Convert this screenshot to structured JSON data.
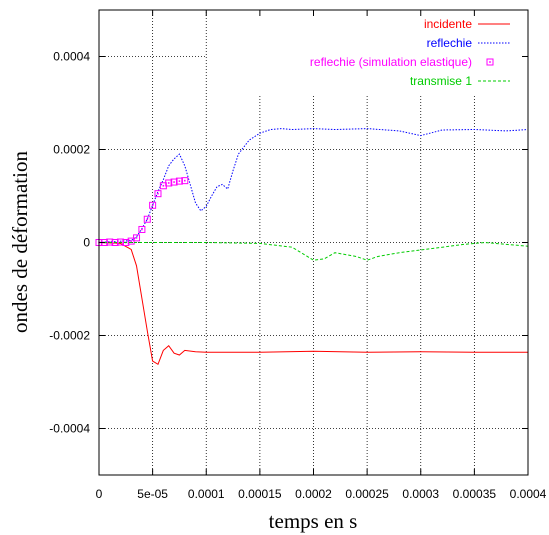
{
  "chart_data": {
    "type": "line",
    "xlabel": "temps en s",
    "ylabel": "ondes de déformation",
    "xlim": [
      0,
      0.0004
    ],
    "ylim": [
      -0.0005,
      0.0005
    ],
    "grid": true,
    "legend_position": "top-right",
    "x_ticks": [
      0,
      5e-05,
      0.0001,
      0.00015,
      0.0002,
      0.00025,
      0.0003,
      0.00035,
      0.0004
    ],
    "x_tick_labels": [
      "0",
      "5e-05",
      "0.0001",
      "0.00015",
      "0.0002",
      "0.00025",
      "0.0003",
      "0.00035",
      "0.0004"
    ],
    "y_ticks": [
      -0.0004,
      -0.0002,
      0,
      0.0002,
      0.0004
    ],
    "y_tick_labels": [
      "-0.0004",
      "-0.0002",
      "0",
      "0.0002",
      "0.0004"
    ],
    "series": [
      {
        "name": "incidente",
        "color": "#ff0000",
        "style": "solid",
        "x": [
          0,
          2e-05,
          3e-05,
          3.5e-05,
          4e-05,
          4.5e-05,
          5e-05,
          5.5e-05,
          6e-05,
          6.5e-05,
          7e-05,
          7.5e-05,
          8e-05,
          9e-05,
          0.0001,
          0.00012,
          0.00015,
          0.0002,
          0.00025,
          0.0003,
          0.00035,
          0.0004
        ],
        "y": [
          0,
          -2e-06,
          -1.5e-05,
          -5e-05,
          -0.00012,
          -0.00019,
          -0.000255,
          -0.000262,
          -0.000232,
          -0.000222,
          -0.000238,
          -0.000242,
          -0.000232,
          -0.000235,
          -0.000236,
          -0.000236,
          -0.000236,
          -0.000234,
          -0.000236,
          -0.000235,
          -0.000236,
          -0.000236
        ]
      },
      {
        "name": "reflechie",
        "color": "#0000ff",
        "style": "dotted",
        "x": [
          0,
          3e-05,
          3.5e-05,
          4e-05,
          4.5e-05,
          5e-05,
          5.5e-05,
          6e-05,
          6.5e-05,
          7e-05,
          7.5e-05,
          8e-05,
          8.5e-05,
          9e-05,
          9.5e-05,
          0.0001,
          0.000105,
          0.00011,
          0.000115,
          0.00012,
          0.000125,
          0.00013,
          0.00014,
          0.00015,
          0.00016,
          0.00017,
          0.00018,
          0.0002,
          0.00022,
          0.00025,
          0.00028,
          0.0003,
          0.00032,
          0.00035,
          0.00038,
          0.0004
        ],
        "y": [
          0,
          4e-06,
          1.2e-05,
          3e-05,
          5e-05,
          8e-05,
          0.00011,
          0.000135,
          0.000165,
          0.00018,
          0.00019,
          0.000165,
          0.000125,
          8.5e-05,
          6.8e-05,
          7.8e-05,
          0.0001,
          0.00012,
          0.000125,
          0.000115,
          0.000155,
          0.00019,
          0.00022,
          0.000235,
          0.000243,
          0.000245,
          0.000243,
          0.000245,
          0.000243,
          0.000245,
          0.00024,
          0.00023,
          0.000242,
          0.000243,
          0.00024,
          0.000243
        ]
      },
      {
        "name": "reflechie (simulation elastique)",
        "color": "#ff00ff",
        "style": "markers",
        "x": [
          0,
          5e-06,
          1e-05,
          1.5e-05,
          2e-05,
          2.5e-05,
          3e-05,
          3.5e-05,
          4e-05,
          4.5e-05,
          5e-05,
          5.5e-05,
          6e-05,
          6.5e-05,
          7e-05,
          7.5e-05,
          8e-05
        ],
        "y": [
          0,
          0,
          1e-06,
          0,
          1e-06,
          0,
          3e-06,
          1e-05,
          2.8e-05,
          5e-05,
          8e-05,
          0.000105,
          0.000122,
          0.000128,
          0.00013,
          0.000132,
          0.000133
        ]
      },
      {
        "name": "transmise 1",
        "color": "#00cc00",
        "style": "dashed",
        "x": [
          0,
          5e-05,
          0.0001,
          0.00015,
          0.00018,
          0.0002,
          0.00021,
          0.00022,
          0.00024,
          0.00025,
          0.00026,
          0.00028,
          0.0003,
          0.00032,
          0.00034,
          0.00036,
          0.00038,
          0.0004
        ],
        "y": [
          0,
          0,
          0,
          -2e-06,
          -1e-05,
          -3.8e-05,
          -3.5e-05,
          -2.2e-05,
          -3e-05,
          -3.8e-05,
          -3e-05,
          -2.2e-05,
          -1.6e-05,
          -1e-05,
          -4e-06,
          0,
          -4e-06,
          -8e-06
        ]
      }
    ]
  }
}
